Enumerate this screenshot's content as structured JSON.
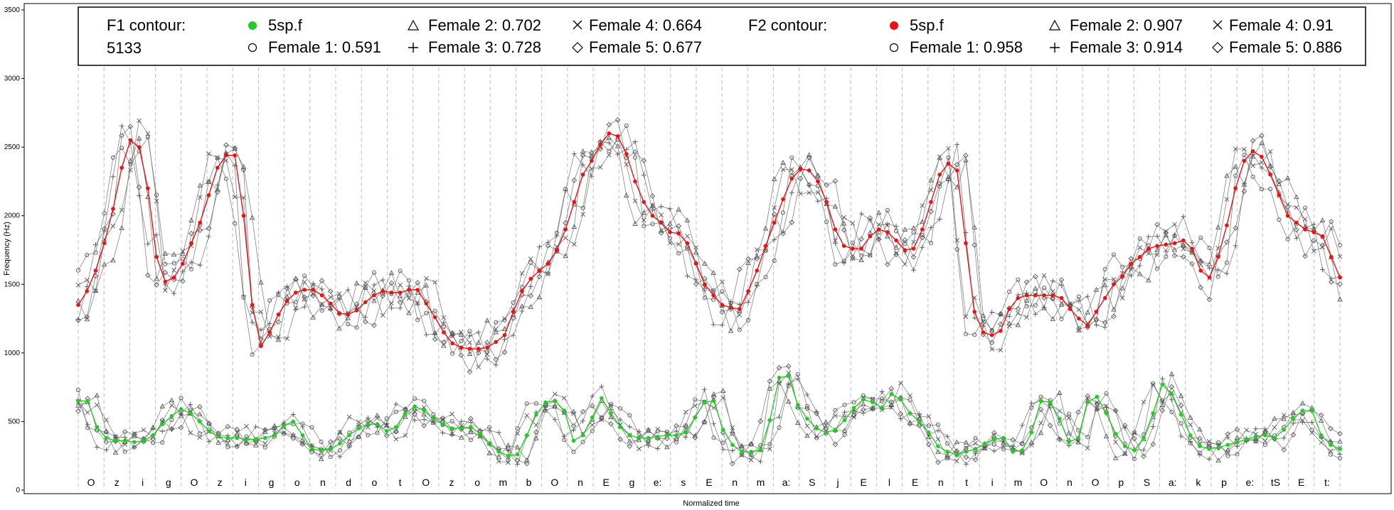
{
  "chart_data": {
    "type": "line",
    "xlabel": "Normalized time",
    "ylabel": "Frequency (Hz)",
    "ylim": [
      0,
      3500
    ],
    "yticks": [
      0,
      500,
      1000,
      1500,
      2000,
      2500,
      3000,
      3500
    ],
    "grid": "vertical dashed segment boundaries",
    "segments": [
      "O",
      "z",
      "i",
      "g",
      "O",
      "z",
      "i",
      "g",
      "o",
      "n",
      "d",
      "o",
      "t",
      "O",
      "z",
      "o",
      "m",
      "b",
      "O",
      "n",
      "E",
      "g",
      "e:",
      "s",
      "E",
      "n",
      "m",
      "a:",
      "S",
      "j",
      "E",
      "l",
      "E",
      "n",
      "t",
      "i",
      "m",
      "O",
      "n",
      "O",
      "p",
      "S",
      "a:",
      "k",
      "p",
      "e:",
      "tS",
      "E",
      "t:"
    ],
    "legend": {
      "f1_title": "F1 contour:",
      "f1_subtitle": "5133",
      "f1_items": [
        "5sp.f",
        "Female 1: 0.591",
        "Female 2: 0.702",
        "Female 3: 0.728",
        "Female 4: 0.664",
        "Female 5: 0.677"
      ],
      "f2_title": "F2 contour:",
      "f2_items": [
        "5sp.f",
        "Female 1: 0.958",
        "Female 2: 0.907",
        "Female 3: 0.914",
        "Female 4: 0.91",
        "Female 5: 0.886"
      ]
    },
    "f1_reference": [
      650,
      650,
      460,
      380,
      360,
      360,
      350,
      360,
      400,
      480,
      540,
      590,
      560,
      500,
      430,
      390,
      380,
      380,
      370,
      370,
      380,
      400,
      470,
      500,
      400,
      300,
      290,
      300,
      340,
      400,
      450,
      480,
      480,
      430,
      460,
      560,
      610,
      580,
      520,
      480,
      450,
      450,
      460,
      410,
      340,
      280,
      250,
      260,
      400,
      550,
      640,
      650,
      580,
      360,
      400,
      530,
      670,
      560,
      460,
      400,
      380,
      380,
      390,
      400,
      400,
      420,
      530,
      640,
      650,
      440,
      330,
      280,
      280,
      290,
      510,
      820,
      830,
      620,
      520,
      450,
      420,
      440,
      510,
      600,
      660,
      640,
      600,
      700,
      660,
      560,
      500,
      420,
      320,
      280,
      260,
      280,
      300,
      340,
      370,
      380,
      280,
      290,
      420,
      650,
      640,
      520,
      350,
      380,
      640,
      680,
      560,
      410,
      320,
      290,
      380,
      560,
      770,
      700,
      550,
      400,
      320,
      300,
      310,
      330,
      350,
      370,
      390,
      400,
      380,
      440,
      520,
      580,
      580,
      400,
      330,
      300
    ],
    "f2_reference": [
      1350,
      1450,
      1600,
      1800,
      2050,
      2350,
      2550,
      2500,
      2200,
      1700,
      1520,
      1550,
      1650,
      1800,
      1950,
      2150,
      2350,
      2440,
      2440,
      2000,
      1350,
      1050,
      1150,
      1280,
      1380,
      1440,
      1460,
      1460,
      1420,
      1360,
      1290,
      1280,
      1310,
      1370,
      1420,
      1450,
      1440,
      1440,
      1460,
      1460,
      1360,
      1260,
      1150,
      1070,
      1040,
      1030,
      1030,
      1040,
      1080,
      1130,
      1300,
      1450,
      1540,
      1600,
      1650,
      1750,
      1900,
      2100,
      2300,
      2400,
      2520,
      2600,
      2580,
      2450,
      2250,
      2100,
      2000,
      1950,
      1880,
      1870,
      1800,
      1650,
      1500,
      1420,
      1350,
      1330,
      1320,
      1450,
      1600,
      1780,
      1950,
      2120,
      2270,
      2340,
      2330,
      2250,
      2100,
      1900,
      1780,
      1760,
      1760,
      1850,
      1900,
      1880,
      1820,
      1750,
      1760,
      1900,
      2100,
      2300,
      2380,
      2330,
      1800,
      1300,
      1150,
      1130,
      1160,
      1320,
      1400,
      1420,
      1420,
      1420,
      1420,
      1400,
      1320,
      1250,
      1200,
      1300,
      1400,
      1500,
      1560,
      1650,
      1700,
      1760,
      1780,
      1790,
      1800,
      1820,
      1760,
      1600,
      1550,
      1700,
      1930,
      2200,
      2400,
      2470,
      2430,
      2300,
      2150,
      2000,
      1950,
      1900,
      1880,
      1850,
      1700,
      1550
    ]
  }
}
